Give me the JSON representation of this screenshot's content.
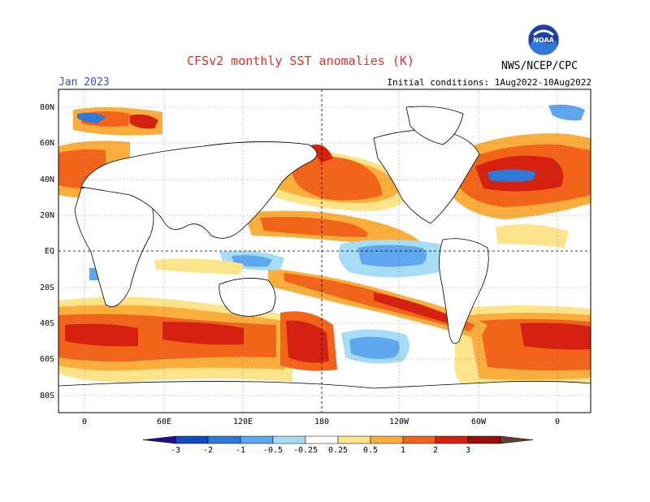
{
  "header": {
    "title": "CFSv2 monthly SST anomalies (K)",
    "month": "Jan 2023",
    "initial_conditions": "Initial conditions: 1Aug2022-10Aug2022",
    "agency": "NWS/NCEP/CPC",
    "logo_text": "NOAA"
  },
  "map": {
    "lat_labels": [
      "80N",
      "60N",
      "40N",
      "20N",
      "EQ",
      "20S",
      "40S",
      "60S",
      "80S"
    ],
    "lon_labels": [
      "0",
      "60E",
      "120E",
      "180",
      "120W",
      "60W",
      "0"
    ]
  },
  "colorbar": {
    "ticks": [
      "-3",
      "-2",
      "-1",
      "-0.5",
      "-0.25",
      "0.25",
      "0.5",
      "1",
      "2",
      "3"
    ],
    "colors": [
      "#2a0a8c",
      "#1248c0",
      "#2e7ad8",
      "#5ea6ee",
      "#a6dcf6",
      "#ffffff",
      "#fde38a",
      "#fbae3c",
      "#f2641a",
      "#d62010",
      "#9c0c08",
      "#6a3a30"
    ]
  }
}
